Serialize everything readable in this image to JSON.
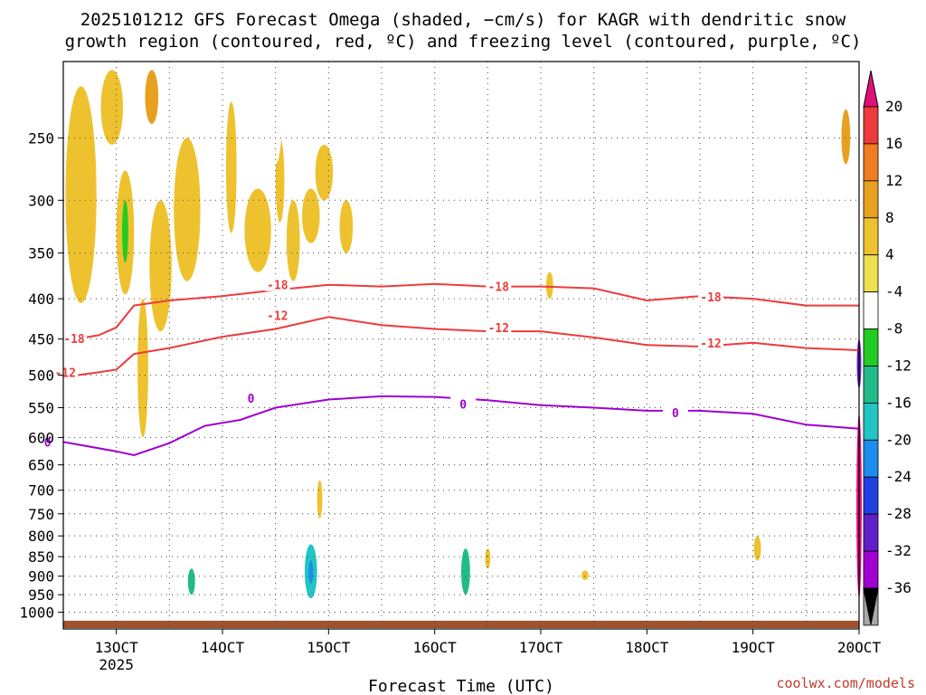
{
  "chart_data": {
    "type": "heatmap",
    "title_lines": [
      "2025101212 GFS Forecast Omega (shaded, −cm/s) for KAGR with dendritic snow",
      "growth region (contoured, red, ºC) and freezing level (contoured, purple, ºC)"
    ],
    "xlabel": "Forecast Time (UTC)",
    "ylabel": "",
    "credit": "coolwx.com/models",
    "x_ticks": [
      {
        "t": 12,
        "label": "13OCT",
        "sub": "2025"
      },
      {
        "t": 36,
        "label": "14OCT",
        "sub": ""
      },
      {
        "t": 60,
        "label": "15OCT",
        "sub": ""
      },
      {
        "t": 84,
        "label": "16OCT",
        "sub": ""
      },
      {
        "t": 108,
        "label": "17OCT",
        "sub": ""
      },
      {
        "t": 132,
        "label": "18OCT",
        "sub": ""
      },
      {
        "t": 156,
        "label": "19OCT",
        "sub": ""
      },
      {
        "t": 180,
        "label": "20OCT",
        "sub": ""
      }
    ],
    "xlim": [
      0,
      180
    ],
    "y_scale": "log",
    "ylim": [
      1050,
      200
    ],
    "y_ticks": [
      250,
      300,
      350,
      400,
      450,
      500,
      550,
      600,
      650,
      700,
      750,
      800,
      850,
      900,
      950,
      1000
    ],
    "grid": true,
    "colorbar": {
      "labels": [
        20,
        16,
        12,
        8,
        4,
        -4,
        -8,
        -12,
        -16,
        -20,
        -24,
        -28,
        -32,
        -36
      ],
      "colors": [
        "#ee3b3b",
        "#f07c22",
        "#e8a020",
        "#eec22e",
        "#eee050",
        "#ffffff",
        "#22cc22",
        "#20bb88",
        "#22c4c4",
        "#1c8cee",
        "#2040e0",
        "#6020c8",
        "#a000d0",
        "#a8a8a8"
      ],
      "top_arrow_color": "#e0107a",
      "bottom_arrow_color": "#000000"
    },
    "contours": [
      {
        "level": "-18",
        "color": "#ee3b3b",
        "points": [
          [
            0,
            453
          ],
          [
            8,
            445
          ],
          [
            12,
            435
          ],
          [
            16,
            408
          ],
          [
            24,
            402
          ],
          [
            36,
            397
          ],
          [
            48,
            390
          ],
          [
            60,
            384
          ],
          [
            72,
            386
          ],
          [
            84,
            383
          ],
          [
            96,
            386
          ],
          [
            108,
            386
          ],
          [
            120,
            388
          ],
          [
            132,
            402
          ],
          [
            144,
            397
          ],
          [
            156,
            400
          ],
          [
            168,
            408
          ],
          [
            180,
            408
          ]
        ],
        "label_points": [
          [
            0,
            449
          ],
          [
            46,
            384
          ],
          [
            96,
            386
          ],
          [
            144,
            398
          ]
        ]
      },
      {
        "level": "-12",
        "color": "#ee3b3b",
        "points": [
          [
            0,
            503
          ],
          [
            8,
            496
          ],
          [
            12,
            492
          ],
          [
            16,
            470
          ],
          [
            24,
            462
          ],
          [
            36,
            447
          ],
          [
            48,
            437
          ],
          [
            60,
            422
          ],
          [
            72,
            432
          ],
          [
            84,
            437
          ],
          [
            96,
            440
          ],
          [
            108,
            440
          ],
          [
            120,
            448
          ],
          [
            132,
            458
          ],
          [
            144,
            460
          ],
          [
            156,
            455
          ],
          [
            168,
            462
          ],
          [
            180,
            465
          ]
        ],
        "label_points": [
          [
            -2,
            496
          ],
          [
            46,
            420
          ],
          [
            96,
            435
          ],
          [
            144,
            455
          ]
        ]
      },
      {
        "level": "0",
        "color": "#a000d0",
        "points": [
          [
            0,
            608
          ],
          [
            12,
            625
          ],
          [
            16,
            632
          ],
          [
            24,
            610
          ],
          [
            32,
            580
          ],
          [
            40,
            570
          ],
          [
            48,
            550
          ],
          [
            60,
            537
          ],
          [
            72,
            532
          ],
          [
            84,
            533
          ],
          [
            96,
            538
          ],
          [
            108,
            546
          ],
          [
            120,
            550
          ],
          [
            132,
            555
          ],
          [
            144,
            555
          ],
          [
            156,
            560
          ],
          [
            168,
            578
          ],
          [
            180,
            585
          ]
        ],
        "label_points": [
          [
            -6,
            608
          ],
          [
            40,
            535
          ],
          [
            88,
            544
          ],
          [
            136,
            558
          ]
        ]
      }
    ],
    "omega_blobs": [
      {
        "t": 4,
        "p0": 215,
        "p1": 405,
        "w": 3.5,
        "value": 5
      },
      {
        "t": 11,
        "p0": 205,
        "p1": 255,
        "w": 2.5,
        "value": 5
      },
      {
        "t": 14,
        "p0": 275,
        "p1": 395,
        "w": 2.0,
        "value": 5
      },
      {
        "t": 14,
        "p0": 300,
        "p1": 360,
        "w": 0.7,
        "value": -10
      },
      {
        "t": 18,
        "p0": 400,
        "p1": 600,
        "w": 1.2,
        "value": 5
      },
      {
        "t": 22,
        "p0": 300,
        "p1": 440,
        "w": 2.5,
        "value": 5
      },
      {
        "t": 28,
        "p0": 250,
        "p1": 380,
        "w": 3.0,
        "value": 5
      },
      {
        "t": 20,
        "p0": 205,
        "p1": 240,
        "w": 1.5,
        "value": 10
      },
      {
        "t": 38,
        "p0": 225,
        "p1": 330,
        "w": 1.2,
        "value": 5
      },
      {
        "t": 44,
        "p0": 290,
        "p1": 370,
        "w": 3.0,
        "value": 5
      },
      {
        "t": 49,
        "p0": 250,
        "p1": 320,
        "w": 1.0,
        "value": 5
      },
      {
        "t": 52,
        "p0": 300,
        "p1": 380,
        "w": 1.5,
        "value": 5
      },
      {
        "t": 48,
        "p0": 200,
        "p1": 270,
        "w": 1.5,
        "value": -6
      },
      {
        "t": 57,
        "p0": 200,
        "p1": 230,
        "w": 2.0,
        "value": -6
      },
      {
        "t": 60,
        "p0": 225,
        "p1": 270,
        "w": 2.0,
        "value": -6
      },
      {
        "t": 59,
        "p0": 255,
        "p1": 300,
        "w": 2.0,
        "value": 5
      },
      {
        "t": 56,
        "p0": 290,
        "p1": 340,
        "w": 2.0,
        "value": 5
      },
      {
        "t": 64,
        "p0": 300,
        "p1": 350,
        "w": 1.5,
        "value": 5
      },
      {
        "t": 6,
        "p0": 880,
        "p1": 950,
        "w": 1.0,
        "value": -6
      },
      {
        "t": 29,
        "p0": 880,
        "p1": 950,
        "w": 0.8,
        "value": -12
      },
      {
        "t": 56,
        "p0": 820,
        "p1": 960,
        "w": 1.4,
        "value": -18
      },
      {
        "t": 56,
        "p0": 860,
        "p1": 920,
        "w": 0.5,
        "value": -22
      },
      {
        "t": 58,
        "p0": 680,
        "p1": 760,
        "w": 0.6,
        "value": 5
      },
      {
        "t": 70,
        "p0": 800,
        "p1": 880,
        "w": 0.6,
        "value": -6
      },
      {
        "t": 80,
        "p0": 840,
        "p1": 890,
        "w": 0.8,
        "value": -6
      },
      {
        "t": 91,
        "p0": 830,
        "p1": 950,
        "w": 1.0,
        "value": -12
      },
      {
        "t": 96,
        "p0": 830,
        "p1": 880,
        "w": 0.6,
        "value": 5
      },
      {
        "t": 118,
        "p0": 885,
        "p1": 910,
        "w": 0.8,
        "value": 6
      },
      {
        "t": 152,
        "p0": 840,
        "p1": 940,
        "w": 1.2,
        "value": -6
      },
      {
        "t": 157,
        "p0": 800,
        "p1": 860,
        "w": 0.8,
        "value": 6
      },
      {
        "t": 110,
        "p0": 370,
        "p1": 400,
        "w": 0.8,
        "value": 6
      },
      {
        "t": 174,
        "p0": 225,
        "p1": 260,
        "w": 0.8,
        "value": -6
      },
      {
        "t": 177,
        "p0": 230,
        "p1": 270,
        "w": 1.0,
        "value": 10
      },
      {
        "t": 179,
        "p0": 205,
        "p1": 1000,
        "w": 0.8,
        "value": -6
      },
      {
        "t": 178,
        "p0": 270,
        "p1": 400,
        "w": 1.0,
        "value": -6
      },
      {
        "t": 180,
        "p0": 450,
        "p1": 520,
        "w": 0.5,
        "value": -30
      },
      {
        "t": 180,
        "p0": 560,
        "p1": 960,
        "w": 0.6,
        "value": 22
      }
    ]
  }
}
